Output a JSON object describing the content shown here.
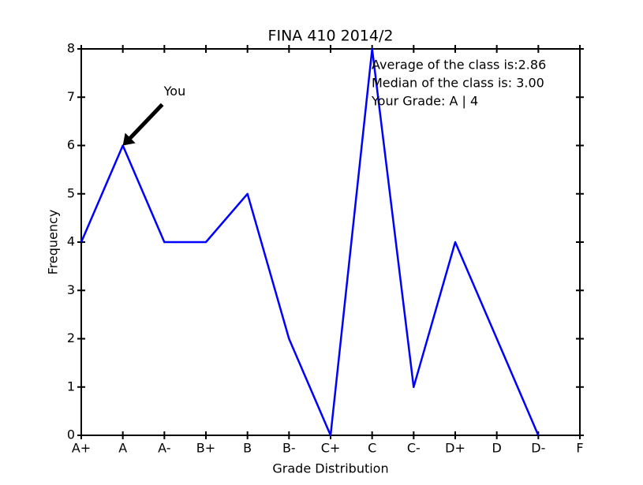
{
  "chart_data": {
    "type": "line",
    "title": "FINA 410  2014/2",
    "x_label": "Grade Distribution",
    "y_label": "Frequency",
    "categories": [
      "A+",
      "A",
      "A-",
      "B+",
      "B",
      "B-",
      "C+",
      "C",
      "C-",
      "D+",
      "D",
      "D-",
      "F"
    ],
    "series": [
      {
        "name": "Frequency",
        "color": "#0000ff",
        "values": [
          4,
          6,
          4,
          4,
          5,
          2,
          0,
          8,
          1,
          4,
          2,
          0,
          null
        ]
      }
    ],
    "ylim": [
      0,
      8
    ],
    "yticks": [
      0,
      1,
      2,
      3,
      4,
      5,
      6,
      7,
      8
    ],
    "annotation": "You",
    "stats": [
      "Average of the class is:2.86",
      "Median of the class is: 3.00",
      "Your Grade: A | 4"
    ]
  }
}
